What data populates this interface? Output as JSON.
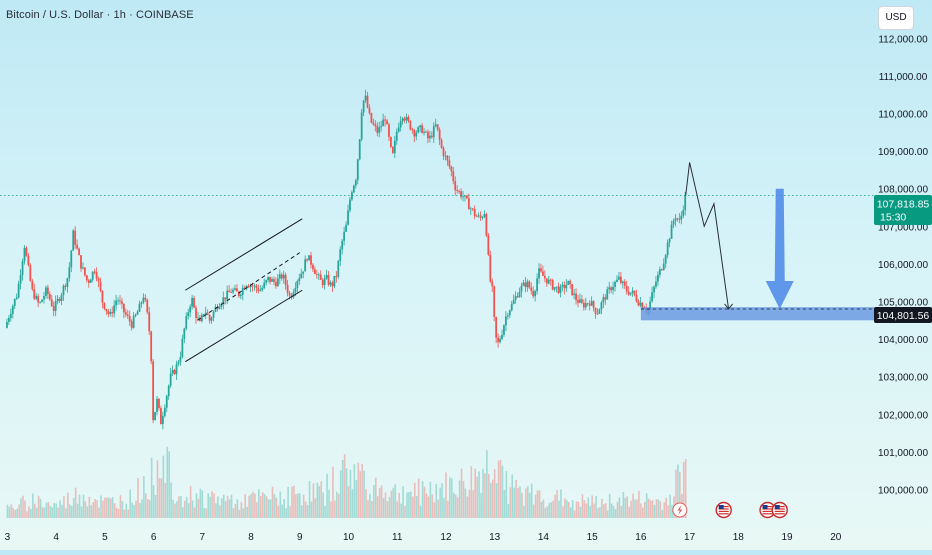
{
  "header": {
    "title": "Bitcoin / U.S. Dollar · 1h · COINBASE",
    "currency": "USD"
  },
  "price_tags": {
    "current_price": "107,818.85",
    "countdown": "15:30",
    "target_price": "104,801.56"
  },
  "colors": {
    "bull": "#26a69a",
    "bear": "#ef5350",
    "current_tag": "#089981",
    "target_zone": "#5d8fe0",
    "arrow": "#4a86e8",
    "projection_line": "#2a2e39"
  },
  "events": {
    "flash_icon": "flash-icon",
    "flag_icon": "us-flag-icon"
  },
  "chart_data": {
    "type": "candlestick",
    "title": "Bitcoin / U.S. Dollar · 1h · COINBASE",
    "y_unit": "USD",
    "x_tick_labels": [
      "3",
      "4",
      "5",
      "6",
      "7",
      "8",
      "9",
      "10",
      "11",
      "12",
      "13",
      "14",
      "15",
      "16",
      "17",
      "18",
      "19",
      "20"
    ],
    "y_tick_labels": [
      "100,000.00",
      "101,000.00",
      "102,000.00",
      "103,000.00",
      "104,000.00",
      "105,000.00",
      "106,000.00",
      "107,000.00",
      "108,000.00",
      "109,000.00",
      "110,000.00",
      "111,000.00",
      "112,000.00"
    ],
    "ylim": [
      99700,
      112700
    ],
    "xlim": [
      2.95,
      20.6
    ],
    "current_price": 107818.85,
    "target_level": 104801.56,
    "price_path": [
      [
        2.95,
        104300
      ],
      [
        3.05,
        104700
      ],
      [
        3.2,
        105200
      ],
      [
        3.35,
        106500
      ],
      [
        3.5,
        105300
      ],
      [
        3.65,
        104900
      ],
      [
        3.8,
        105300
      ],
      [
        3.95,
        104800
      ],
      [
        4.1,
        105200
      ],
      [
        4.25,
        105700
      ],
      [
        4.35,
        106800
      ],
      [
        4.5,
        106000
      ],
      [
        4.65,
        105500
      ],
      [
        4.8,
        105900
      ],
      [
        4.95,
        105000
      ],
      [
        5.1,
        104600
      ],
      [
        5.25,
        105100
      ],
      [
        5.4,
        104700
      ],
      [
        5.55,
        104400
      ],
      [
        5.7,
        104800
      ],
      [
        5.8,
        105200
      ],
      [
        5.9,
        104400
      ],
      [
        5.95,
        103500
      ],
      [
        6.0,
        101500
      ],
      [
        6.05,
        102500
      ],
      [
        6.15,
        101800
      ],
      [
        6.25,
        102400
      ],
      [
        6.35,
        103000
      ],
      [
        6.45,
        103200
      ],
      [
        6.55,
        103600
      ],
      [
        6.62,
        104200
      ],
      [
        6.7,
        104700
      ],
      [
        6.78,
        105100
      ],
      [
        6.85,
        104700
      ],
      [
        6.95,
        104400
      ],
      [
        7.05,
        104800
      ],
      [
        7.15,
        104500
      ],
      [
        7.3,
        104900
      ],
      [
        7.45,
        105100
      ],
      [
        7.6,
        105300
      ],
      [
        7.75,
        105200
      ],
      [
        7.9,
        105500
      ],
      [
        8.05,
        105400
      ],
      [
        8.2,
        105300
      ],
      [
        8.35,
        105600
      ],
      [
        8.5,
        105500
      ],
      [
        8.65,
        105700
      ],
      [
        8.8,
        105100
      ],
      [
        8.95,
        105600
      ],
      [
        9.05,
        105800
      ],
      [
        9.15,
        106200
      ],
      [
        9.25,
        106000
      ],
      [
        9.35,
        105700
      ],
      [
        9.45,
        105500
      ],
      [
        9.55,
        105600
      ],
      [
        9.65,
        105400
      ],
      [
        9.75,
        105700
      ],
      [
        9.85,
        106500
      ],
      [
        9.95,
        107000
      ],
      [
        10.05,
        107900
      ],
      [
        10.15,
        108300
      ],
      [
        10.22,
        109200
      ],
      [
        10.28,
        110300
      ],
      [
        10.35,
        110400
      ],
      [
        10.45,
        109800
      ],
      [
        10.6,
        109500
      ],
      [
        10.75,
        109900
      ],
      [
        10.9,
        108800
      ],
      [
        11.0,
        109600
      ],
      [
        11.1,
        110000
      ],
      [
        11.2,
        109800
      ],
      [
        11.35,
        109500
      ],
      [
        11.5,
        109600
      ],
      [
        11.65,
        109300
      ],
      [
        11.8,
        109700
      ],
      [
        11.9,
        109100
      ],
      [
        12.0,
        108800
      ],
      [
        12.1,
        108500
      ],
      [
        12.2,
        108000
      ],
      [
        12.35,
        107800
      ],
      [
        12.5,
        107500
      ],
      [
        12.6,
        107300
      ],
      [
        12.7,
        107200
      ],
      [
        12.8,
        107400
      ],
      [
        12.9,
        105600
      ],
      [
        12.95,
        105300
      ],
      [
        13.0,
        104300
      ],
      [
        13.05,
        103800
      ],
      [
        13.15,
        104200
      ],
      [
        13.25,
        104700
      ],
      [
        13.35,
        104900
      ],
      [
        13.5,
        105300
      ],
      [
        13.65,
        105500
      ],
      [
        13.8,
        105200
      ],
      [
        13.9,
        105800
      ],
      [
        14.05,
        105600
      ],
      [
        14.2,
        105400
      ],
      [
        14.35,
        105300
      ],
      [
        14.5,
        105500
      ],
      [
        14.65,
        105100
      ],
      [
        14.8,
        104900
      ],
      [
        14.95,
        105000
      ],
      [
        15.1,
        104700
      ],
      [
        15.25,
        105100
      ],
      [
        15.4,
        105400
      ],
      [
        15.55,
        105600
      ],
      [
        15.7,
        105300
      ],
      [
        15.85,
        105200
      ],
      [
        15.95,
        105000
      ],
      [
        16.05,
        104900
      ],
      [
        16.15,
        104800
      ],
      [
        16.3,
        105500
      ],
      [
        16.45,
        106000
      ],
      [
        16.6,
        106800
      ],
      [
        16.7,
        107300
      ],
      [
        16.8,
        107100
      ],
      [
        16.88,
        107600
      ],
      [
        16.92,
        107818.85
      ]
    ],
    "volume_path": [
      [
        3,
        3
      ],
      [
        3.5,
        6
      ],
      [
        4,
        4
      ],
      [
        4.5,
        8
      ],
      [
        5,
        5
      ],
      [
        5.5,
        6
      ],
      [
        6,
        14
      ],
      [
        6.2,
        24
      ],
      [
        6.5,
        8
      ],
      [
        7,
        7
      ],
      [
        7.5,
        6
      ],
      [
        8,
        6
      ],
      [
        8.5,
        7
      ],
      [
        9,
        8
      ],
      [
        9.5,
        9
      ],
      [
        10,
        16
      ],
      [
        10.3,
        14
      ],
      [
        10.6,
        10
      ],
      [
        11,
        8
      ],
      [
        11.5,
        9
      ],
      [
        12,
        10
      ],
      [
        12.5,
        12
      ],
      [
        12.9,
        18
      ],
      [
        13,
        22
      ],
      [
        13.3,
        10
      ],
      [
        13.6,
        8
      ],
      [
        14,
        7
      ],
      [
        14.5,
        6
      ],
      [
        15,
        5
      ],
      [
        15.5,
        6
      ],
      [
        16,
        6
      ],
      [
        16.5,
        5
      ],
      [
        16.9,
        16
      ]
    ],
    "volume_max": 26,
    "channel": {
      "upper": [
        [
          6.65,
          105300
        ],
        [
          9.05,
          107200
        ]
      ],
      "lower": [
        [
          6.65,
          103400
        ],
        [
          9.05,
          105300
        ]
      ],
      "mid": [
        [
          6.9,
          104500
        ],
        [
          9.0,
          106300
        ]
      ]
    },
    "projection": [
      [
        16.92,
        107818.85
      ],
      [
        17.0,
        108700
      ],
      [
        17.3,
        107000
      ],
      [
        17.5,
        107600
      ],
      [
        17.8,
        104801.56
      ]
    ],
    "target_zone": {
      "x_from": 16.0,
      "x_to": 20.6,
      "y_from": 104500,
      "y_to": 104850
    },
    "down_arrow": {
      "x": 18.85,
      "y_from": 108000,
      "y_to": 104801.56
    },
    "event_markers": [
      {
        "x": 16.8,
        "kind": "flash"
      },
      {
        "x": 17.7,
        "kind": "us-flag"
      },
      {
        "x": 18.6,
        "kind": "us-flag"
      },
      {
        "x": 18.85,
        "kind": "us-flag"
      }
    ]
  }
}
